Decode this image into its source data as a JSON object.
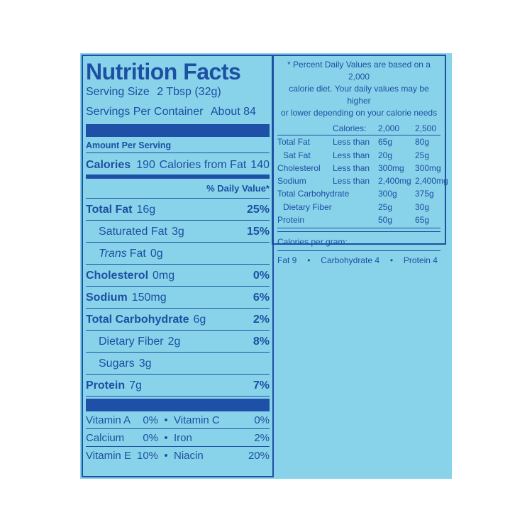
{
  "left": {
    "title": "Nutrition Facts",
    "serving_size": {
      "label": "Serving Size",
      "value": "2 Tbsp (32g)"
    },
    "servings": {
      "label": "Servings Per Container",
      "value": "About 84"
    },
    "amount_per_serving": "Amount Per Serving",
    "calories": {
      "label": "Calories",
      "value": "190",
      "fat_label": "Calories from Fat",
      "fat_value": "140"
    },
    "dv_header": "% Daily Value*",
    "nutrients": [
      {
        "name": "Total Fat",
        "amount": "16g",
        "dv": "25%",
        "bold": true
      },
      {
        "name": "Saturated Fat",
        "amount": "3g",
        "dv": "15%",
        "indent": true
      },
      {
        "italic_prefix": "Trans",
        "name": "Fat",
        "amount": "0g",
        "indent": true
      },
      {
        "name": "Cholesterol",
        "amount": "0mg",
        "dv": "0%",
        "bold": true
      },
      {
        "name": "Sodium",
        "amount": "150mg",
        "dv": "6%",
        "bold": true
      },
      {
        "name": "Total Carbohydrate",
        "amount": "6g",
        "dv": "2%",
        "bold": true
      },
      {
        "name": "Dietary Fiber",
        "amount": "2g",
        "dv": "8%",
        "indent": true
      },
      {
        "name": "Sugars",
        "amount": "3g",
        "indent": true
      },
      {
        "name": "Protein",
        "amount": "7g",
        "dv": "7%",
        "bold": true
      }
    ],
    "vitamins": [
      [
        {
          "name": "Vitamin A",
          "dv": "0%"
        },
        {
          "name": "Vitamin C",
          "dv": "0%"
        }
      ],
      [
        {
          "name": "Calcium",
          "dv": "0%"
        },
        {
          "name": "Iron",
          "dv": "2%"
        }
      ],
      [
        {
          "name": "Vitamin E",
          "dv": "10%"
        },
        {
          "name": "Niacin",
          "dv": "20%"
        }
      ]
    ]
  },
  "right": {
    "footnote": [
      "* Percent Daily Values are based on a 2,000",
      "calorie diet. Your daily values may be higher",
      "or lower depending on your calorie needs"
    ],
    "header": {
      "label": "Calories:",
      "c1": "2,000",
      "c2": "2,500"
    },
    "rows": [
      {
        "name": "Total Fat",
        "qualifier": "Less than",
        "c1": "65g",
        "c2": "80g"
      },
      {
        "name": "Sat Fat",
        "qualifier": "Less than",
        "c1": "20g",
        "c2": "25g",
        "indent": true
      },
      {
        "name": "Cholesterol",
        "qualifier": "Less than",
        "c1": "300mg",
        "c2": "300mg"
      },
      {
        "name": "Sodium",
        "qualifier": "Less than",
        "c1": "2,400mg",
        "c2": "2,400mg"
      },
      {
        "name": "Total Carbohydrate",
        "c1": "300g",
        "c2": "375g"
      },
      {
        "name": "Dietary Fiber",
        "c1": "25g",
        "c2": "30g",
        "indent": true
      },
      {
        "name": "Protein",
        "c1": "50g",
        "c2": "65g"
      }
    ],
    "per_gram_label": "Calories per gram:",
    "per_gram": [
      "Fat 9",
      "Carbohydrate 4",
      "Protein 4"
    ]
  }
}
